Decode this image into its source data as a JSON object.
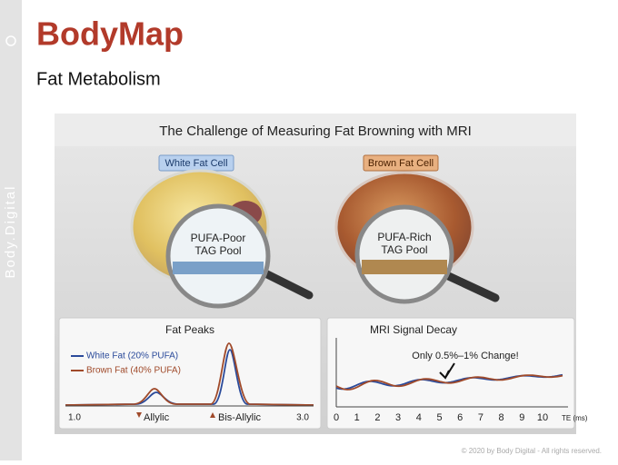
{
  "sidebar": {
    "brand": "Body.Digital"
  },
  "header": {
    "title": "BodyMap",
    "subtitle": "Fat Metabolism"
  },
  "figure": {
    "title": "The Challenge of Measuring Fat Browning with MRI",
    "white_cell": {
      "label": "White Fat Cell",
      "lens_lines": [
        "PUFA-Poor",
        "TAG Pool"
      ]
    },
    "brown_cell": {
      "label": "Brown Fat Cell",
      "lens_lines": [
        "PUFA-Rich",
        "TAG Pool"
      ]
    },
    "fat_peaks": {
      "title": "Fat Peaks",
      "legend": [
        "White Fat (20% PUFA)",
        "Brown Fat (40% PUFA)"
      ],
      "axis_left": "1.0",
      "axis_right": "3.0",
      "peak_labels": [
        "Allylic",
        "Bis-Allylic"
      ]
    },
    "signal_decay": {
      "title": "MRI Signal Decay",
      "annotation": "Only 0.5%–1% Change!",
      "ticks": [
        0,
        1,
        2,
        3,
        4,
        5,
        6,
        7,
        8,
        9,
        10
      ],
      "unit": "TE (ms)"
    }
  },
  "footer": {
    "copyright": "© 2020 by Body Digital - All rights reserved."
  }
}
